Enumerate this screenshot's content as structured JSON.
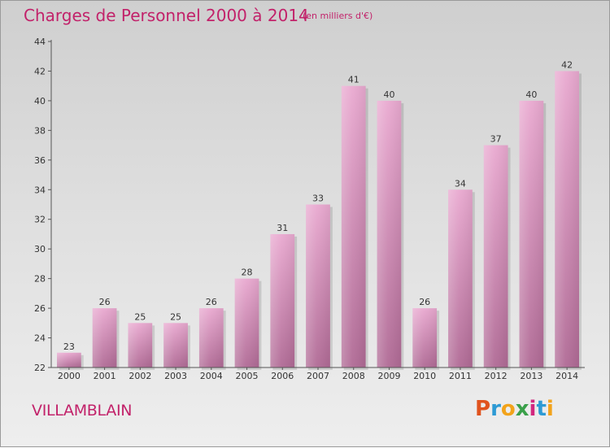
{
  "header": {
    "title": "Charges de Personnel 2000 à 2014",
    "unit": "(en milliers d'€)"
  },
  "footer": {
    "place": "VILLAMBLAIN",
    "logo_letters": [
      "P",
      "r",
      "o",
      "x",
      "i",
      "t",
      "i"
    ],
    "logo_colors": [
      "#e0531e",
      "#2d9ad4",
      "#f2a31b",
      "#3aa04a",
      "#d2277f",
      "#2d9ad4",
      "#f2a31b"
    ]
  },
  "colors": {
    "bar_light": "#e8a8cf",
    "bar_dark": "#b06a95",
    "title": "#c2226a"
  },
  "chart_data": {
    "type": "bar",
    "categories": [
      "2000",
      "2001",
      "2002",
      "2003",
      "2004",
      "2005",
      "2006",
      "2007",
      "2008",
      "2009",
      "2010",
      "2011",
      "2012",
      "2013",
      "2014"
    ],
    "values": [
      23,
      26,
      25,
      25,
      26,
      28,
      31,
      33,
      41,
      40,
      26,
      34,
      37,
      40,
      42
    ],
    "ylim": [
      22,
      44
    ],
    "yticks": [
      22,
      24,
      26,
      28,
      30,
      32,
      34,
      36,
      38,
      40,
      42,
      44
    ],
    "grid": false
  }
}
